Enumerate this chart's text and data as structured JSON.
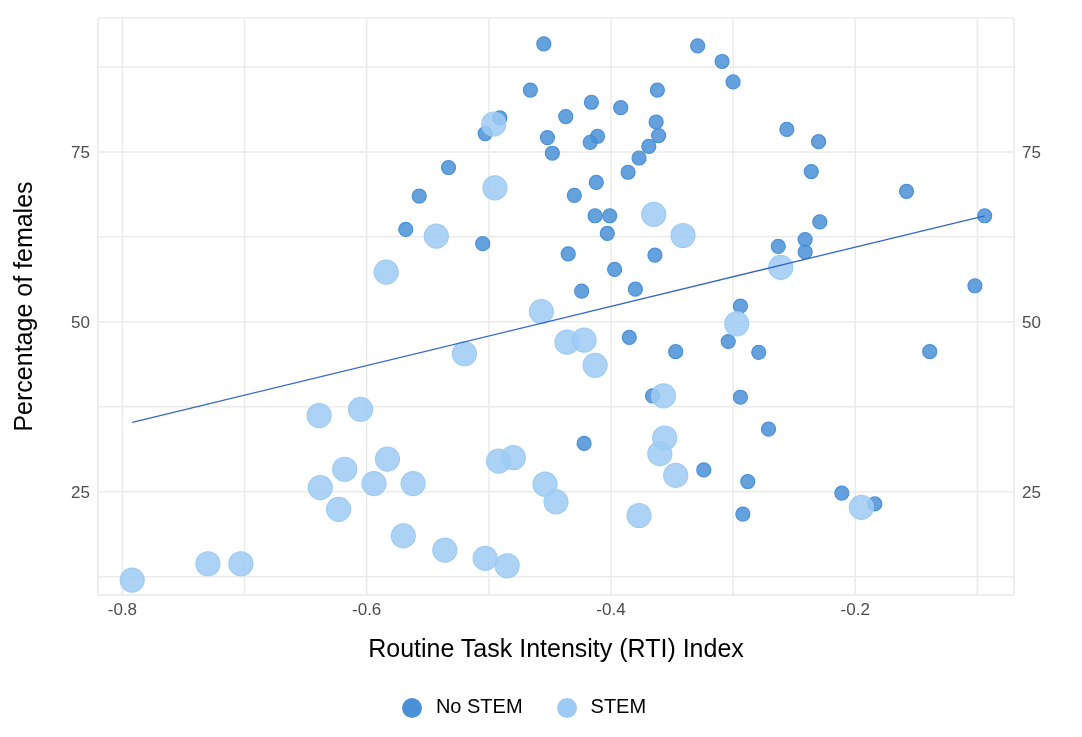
{
  "chart_data": {
    "type": "scatter",
    "xlabel": "Routine Task Intensity (RTI) Index",
    "ylabel": "Percentage of females",
    "xlim": [
      -0.82,
      -0.07
    ],
    "ylim": [
      9.8,
      94.7
    ],
    "y2lim": [
      9.8,
      94.7
    ],
    "xticks": [
      -0.8,
      {
        "value": -0.7,
        "label": null
      },
      -0.6,
      {
        "value": -0.5,
        "label": null
      },
      -0.4,
      {
        "value": -0.3,
        "label": null
      },
      -0.2,
      {
        "value": -0.1,
        "label": null
      }
    ],
    "yticks": [
      {
        "value": 12.5,
        "label": null
      },
      25,
      {
        "value": 37.5,
        "label": null
      },
      50,
      {
        "value": 62.5,
        "label": null
      },
      75,
      {
        "value": 87.5,
        "label": null
      }
    ],
    "y2ticks": [
      25,
      50,
      75
    ],
    "grid": true,
    "legend": "bottom",
    "marker": "circle",
    "series": [
      {
        "name": "No STEM",
        "color": "#4a90d6",
        "x": [
          -0.455,
          -0.466,
          -0.491,
          -0.503,
          -0.452,
          -0.448,
          -0.533,
          -0.557,
          -0.568,
          -0.505,
          -0.329,
          -0.309,
          -0.3,
          -0.362,
          -0.416,
          -0.392,
          -0.437,
          -0.411,
          -0.417,
          -0.363,
          -0.361,
          -0.369,
          -0.377,
          -0.386,
          -0.412,
          -0.43,
          -0.413,
          -0.401,
          -0.403,
          -0.435,
          -0.364,
          -0.397,
          -0.38,
          -0.424,
          -0.256,
          -0.23,
          -0.236,
          -0.158,
          -0.229,
          -0.241,
          -0.263,
          -0.241,
          -0.094,
          -0.102,
          -0.294,
          -0.385,
          -0.347,
          -0.304,
          -0.279,
          -0.139,
          -0.366,
          -0.294,
          -0.271,
          -0.422,
          -0.324,
          -0.288,
          -0.211,
          -0.184,
          -0.292
        ],
        "values": [
          90.9,
          84.1,
          80.0,
          77.7,
          77.1,
          74.8,
          72.7,
          68.5,
          63.6,
          61.5,
          90.6,
          88.3,
          85.3,
          84.1,
          82.3,
          81.5,
          80.2,
          77.3,
          76.4,
          79.4,
          77.4,
          75.8,
          74.1,
          72.0,
          70.5,
          68.6,
          65.6,
          65.6,
          63.0,
          60.0,
          59.8,
          57.7,
          54.8,
          54.5,
          78.3,
          76.5,
          72.1,
          69.2,
          64.7,
          62.1,
          61.1,
          60.3,
          65.6,
          55.3,
          52.3,
          47.7,
          45.6,
          47.1,
          45.5,
          45.6,
          39.1,
          38.9,
          34.2,
          32.1,
          28.2,
          26.5,
          24.8,
          23.2,
          21.7
        ]
      },
      {
        "name": "STEM",
        "color": "#9ecbf3",
        "x": [
          -0.496,
          -0.495,
          -0.543,
          -0.584,
          -0.457,
          -0.365,
          -0.341,
          -0.261,
          -0.297,
          -0.436,
          -0.422,
          -0.413,
          -0.357,
          -0.356,
          -0.36,
          -0.347,
          -0.454,
          -0.445,
          -0.377,
          -0.195,
          -0.52,
          -0.639,
          -0.605,
          -0.618,
          -0.638,
          -0.623,
          -0.594,
          -0.583,
          -0.562,
          -0.57,
          -0.536,
          -0.503,
          -0.485,
          -0.492,
          -0.48,
          -0.73,
          -0.703,
          -0.792
        ],
        "values": [
          79.1,
          69.7,
          62.6,
          57.3,
          51.5,
          65.8,
          62.7,
          58.0,
          49.7,
          47.0,
          47.3,
          43.6,
          39.1,
          32.9,
          30.6,
          27.4,
          26.1,
          23.5,
          21.5,
          22.7,
          45.3,
          36.2,
          37.1,
          28.3,
          25.6,
          22.4,
          26.2,
          29.8,
          26.2,
          18.5,
          16.4,
          15.2,
          14.1,
          29.5,
          30.0,
          14.4,
          14.4,
          12.0
        ]
      },
      {
        "type": "line",
        "color": "#3366cc",
        "marker": "none",
        "x": [
          -0.792,
          -0.094
        ],
        "values": [
          35.2,
          65.6
        ]
      }
    ]
  }
}
